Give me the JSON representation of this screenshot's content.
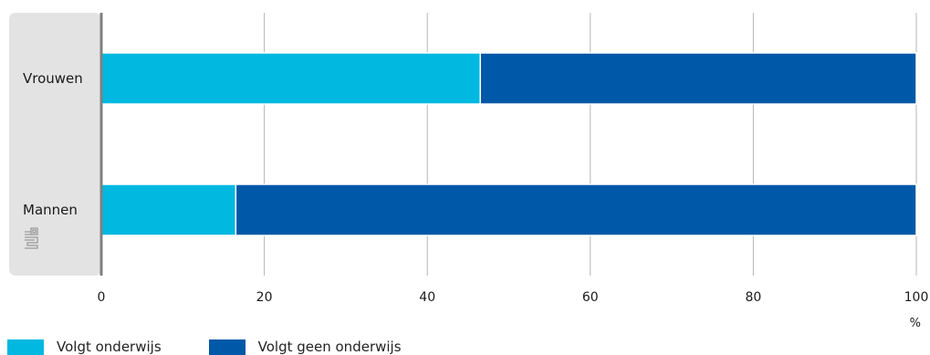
{
  "chart_data": {
    "type": "bar",
    "orientation": "horizontal",
    "stacked": true,
    "categories": [
      "Vrouwen",
      "Mannen"
    ],
    "series": [
      {
        "name": "Volgt onderwijs",
        "values": [
          46.5,
          16.5
        ],
        "color": "#00b8e0"
      },
      {
        "name": "Volgt geen onderwijs",
        "values": [
          53.5,
          83.5
        ],
        "color": "#0058a8"
      }
    ],
    "xlim": [
      0,
      100
    ],
    "xticks": [
      "0",
      "20",
      "40",
      "60",
      "80",
      "100"
    ],
    "xunit": "%",
    "grid": true,
    "legend": "bottom-left",
    "logo": "cbs-logo-icon"
  }
}
